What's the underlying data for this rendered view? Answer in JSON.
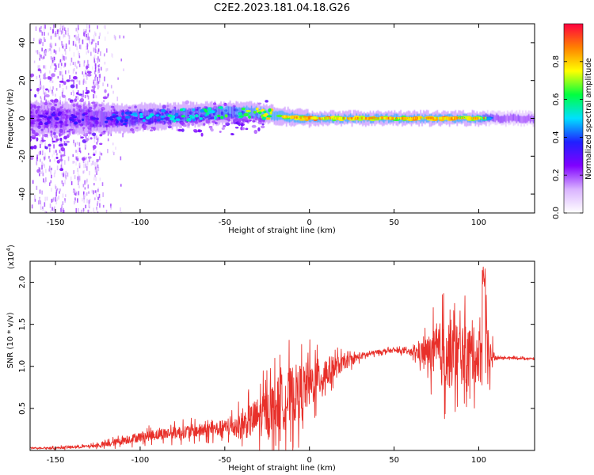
{
  "figure": {
    "title": "C2E2.2023.181.04.18.G26"
  },
  "chart_data": [
    {
      "type": "heatmap",
      "xlabel": "Height of straight line (km)",
      "ylabel": "Frequency (Hz)",
      "xlim": [
        -165,
        133
      ],
      "ylim": [
        -50,
        50
      ],
      "xticks": [
        -150,
        -100,
        -50,
        0,
        50,
        100
      ],
      "yticks": [
        -40,
        -20,
        0,
        20,
        40
      ],
      "colorbar": {
        "label": "Normalized spectral amplitude",
        "range": [
          0.0,
          1.0
        ],
        "ticks": [
          0.0,
          0.2,
          0.4,
          0.6,
          0.8
        ],
        "colormap": [
          "#ffffff",
          "#d9b3ff",
          "#8000ff",
          "#2020ff",
          "#00e0ff",
          "#00ff40",
          "#ffff00",
          "#ff8000",
          "#ff0040"
        ]
      },
      "series": [
        {
          "x": [
            -160,
            -150,
            -140,
            -130,
            -120,
            -110,
            -100,
            -90,
            -80,
            -70,
            -60,
            -50,
            -40,
            -30,
            -20,
            -10,
            0,
            10,
            20,
            30,
            40,
            50,
            60,
            70,
            80,
            90,
            100,
            110,
            120,
            130
          ],
          "peak_frequency": [
            0,
            0,
            0,
            0,
            0,
            0,
            0.5,
            1,
            1.5,
            2,
            2.5,
            3,
            3.5,
            3,
            1.5,
            0.5,
            0,
            0,
            0,
            0,
            0,
            0,
            0,
            0,
            0,
            0,
            0,
            0,
            0,
            0
          ],
          "peak_amplitude": [
            0.3,
            0.35,
            0.35,
            0.35,
            0.4,
            0.45,
            0.5,
            0.5,
            0.55,
            0.6,
            0.6,
            0.65,
            0.7,
            0.75,
            0.8,
            0.85,
            0.9,
            0.85,
            0.85,
            0.85,
            0.85,
            0.85,
            0.85,
            0.85,
            0.85,
            0.85,
            0.75,
            0.35,
            0.35,
            0.35
          ]
        }
      ]
    },
    {
      "type": "line",
      "xlabel": "Height of straight line (km)",
      "ylabel": "SNR (10 * v/v)",
      "y_multiplier": "(x10",
      "y_multiplier_exponent": "4",
      "y_multiplier_close": ")",
      "xlim": [
        -165,
        133
      ],
      "ylim": [
        0,
        2.25
      ],
      "xticks": [
        -150,
        -100,
        -50,
        0,
        50,
        100
      ],
      "yticks": [
        0.5,
        1.0,
        1.5,
        2.0
      ],
      "color": "#e8302a",
      "series": [
        {
          "x": [
            -165,
            -150,
            -140,
            -130,
            -120,
            -110,
            -100,
            -90,
            -80,
            -70,
            -60,
            -50,
            -40,
            -30,
            -20,
            -10,
            0,
            10,
            20,
            30,
            40,
            50,
            60,
            70,
            80,
            90,
            100,
            104,
            110,
            120,
            133
          ],
          "y": [
            0.03,
            0.03,
            0.04,
            0.05,
            0.07,
            0.12,
            0.16,
            0.19,
            0.21,
            0.23,
            0.24,
            0.27,
            0.3,
            0.4,
            0.53,
            0.65,
            0.78,
            0.92,
            1.04,
            1.12,
            1.17,
            1.19,
            1.17,
            1.16,
            1.15,
            1.14,
            1.13,
            1.12,
            1.1,
            1.1,
            1.09
          ],
          "noise": [
            0.01,
            0.015,
            0.02,
            0.02,
            0.04,
            0.06,
            0.07,
            0.08,
            0.09,
            0.1,
            0.1,
            0.12,
            0.2,
            0.3,
            0.4,
            0.45,
            0.35,
            0.25,
            0.1,
            0.05,
            0.03,
            0.03,
            0.04,
            0.25,
            0.55,
            0.45,
            0.4,
            0.5,
            0.02,
            0.015,
            0.015
          ]
        }
      ]
    }
  ]
}
